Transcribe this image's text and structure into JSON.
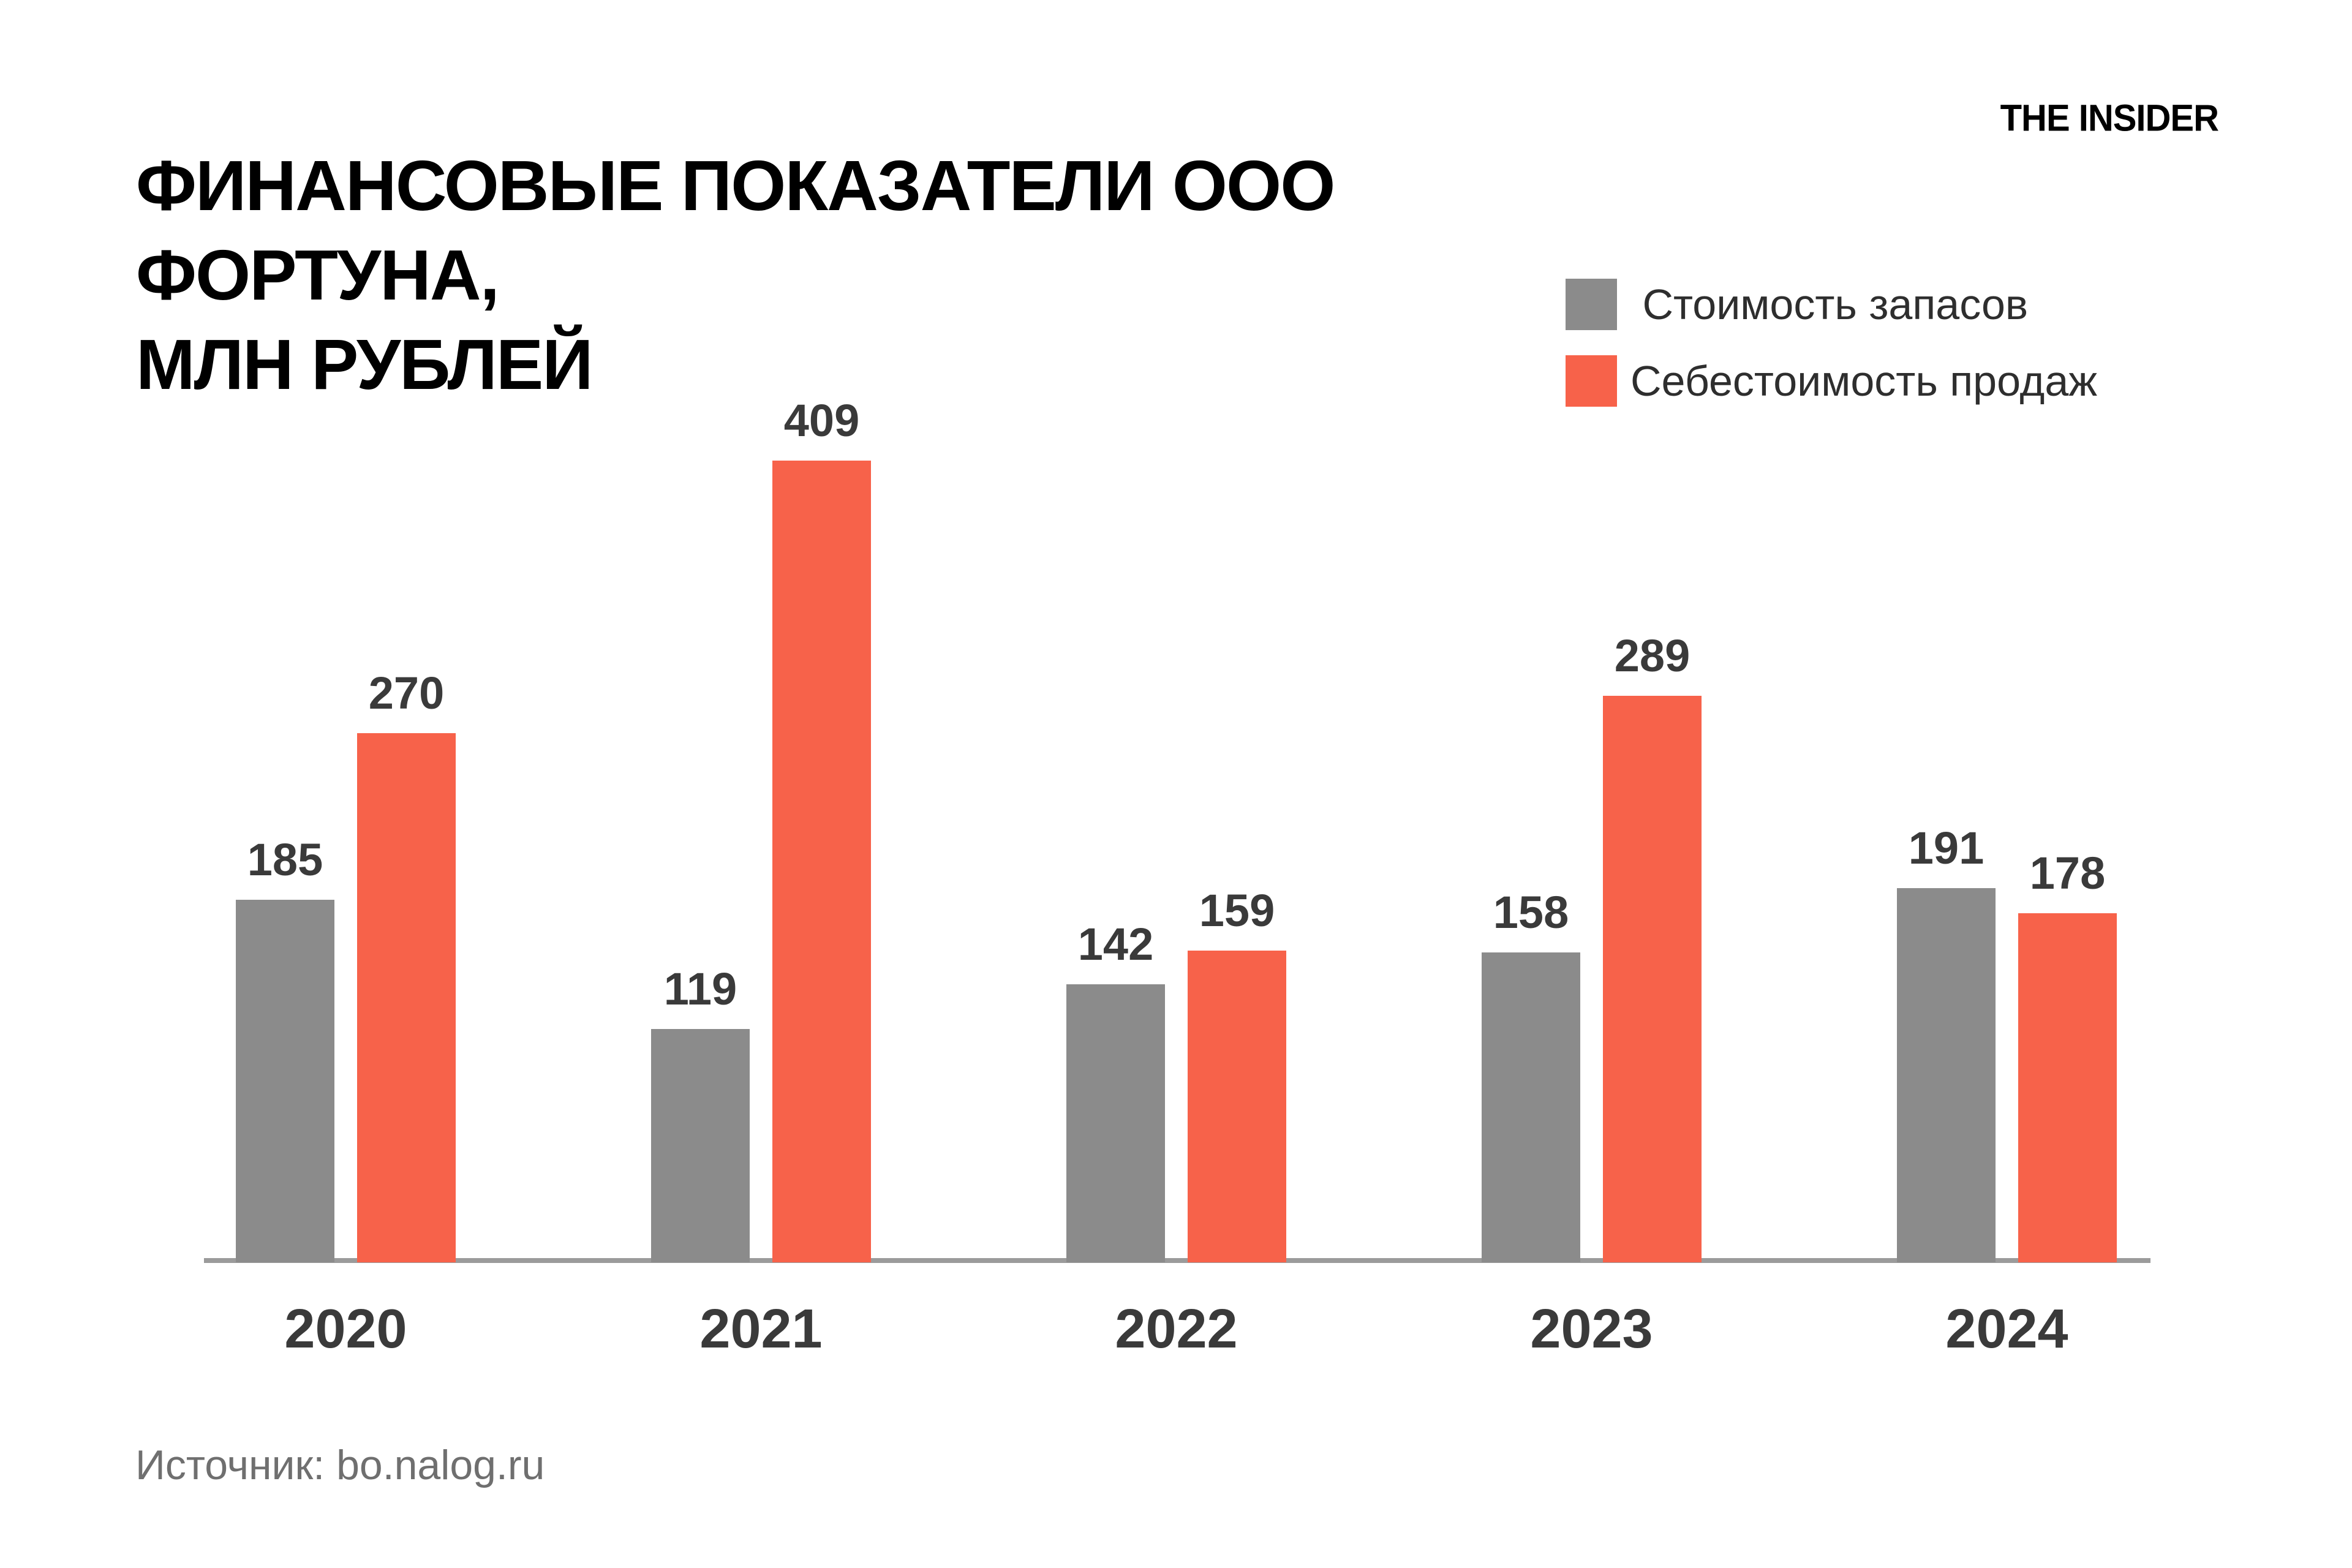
{
  "header": {
    "title": "ФИНАНСОВЫЕ ПОКАЗАТЕЛИ ООО ФОРТУНА, МЛН РУБЛЕЙ",
    "title_lines": [
      "ФИНАНСОВЫЕ ПОКАЗАТЕЛИ ООО ФОРТУНА,",
      "МЛН РУБЛЕЙ"
    ],
    "logo": "THE INSIDER"
  },
  "footer": {
    "source": "Источник: bo.nalog.ru"
  },
  "colors": {
    "inventory_gray": "#8B8B8B",
    "cost_of_sales_red": "#F7624A",
    "axis": "#9B9B9B",
    "value_label": "#3A3A3A",
    "background": "#FFFFFF"
  },
  "chart_data": {
    "type": "bar",
    "title": "ФИНАНСОВЫЕ ПОКАЗАТЕЛИ ООО ФОРТУНА, МЛН РУБЛЕЙ",
    "categories": [
      "2020",
      "2021",
      "2022",
      "2023",
      "2024"
    ],
    "series": [
      {
        "key": "inventory",
        "name": " Стоимость запасов",
        "color": "#8B8B8B",
        "values": [
          185,
          119,
          142,
          158,
          191
        ]
      },
      {
        "key": "cost-of-sales",
        "name": "Себестоимость продаж",
        "color": "#F7624A",
        "values": [
          270,
          409,
          159,
          289,
          178
        ]
      }
    ],
    "xlabel": "",
    "ylabel": "",
    "ylim": [
      0,
      430
    ],
    "grid": false,
    "value_labels": true,
    "legend_position": "top-right",
    "units": "млн рублей"
  }
}
